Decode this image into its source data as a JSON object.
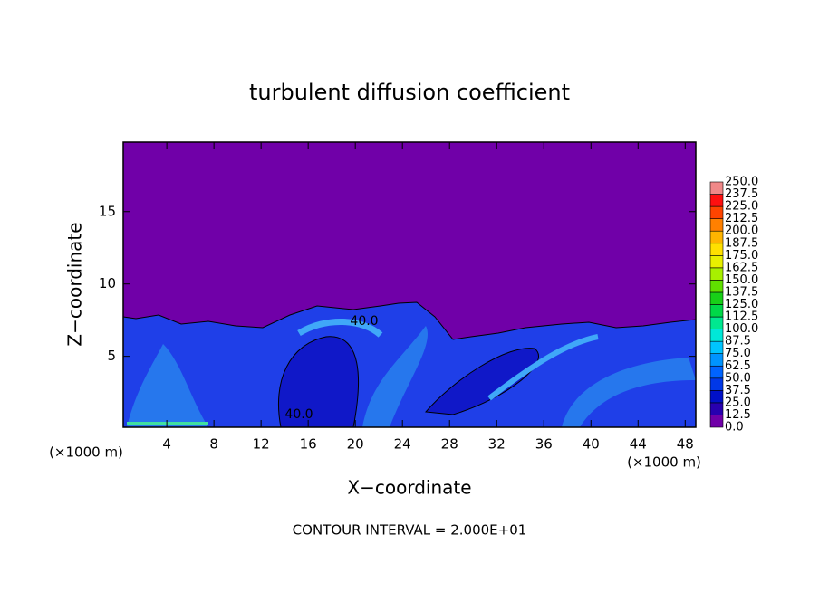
{
  "chart_data": {
    "type": "contour",
    "title": "turbulent diffusion coefficient",
    "x_label": "X−coordinate",
    "y_label": "Z−coordinate",
    "x_unit": "(×1000 m)",
    "footer": "CONTOUR INTERVAL = 2.000E+01",
    "contour_labels": [
      "40.0",
      "40.0"
    ],
    "xlim": [
      0.3,
      48.9
    ],
    "ylim": [
      0.1,
      19.8
    ],
    "xticks": [
      4,
      8,
      12,
      16,
      20,
      24,
      28,
      32,
      36,
      40,
      44,
      48
    ],
    "yticks": [
      5,
      10,
      15
    ],
    "colorbar": {
      "levels": [
        {
          "value": 0,
          "label": "0.0"
        },
        {
          "value": 12.5,
          "label": "12.5"
        },
        {
          "value": 25,
          "label": "25.0"
        },
        {
          "value": 37.5,
          "label": "37.5"
        },
        {
          "value": 50,
          "label": "50.0"
        },
        {
          "value": 62.5,
          "label": "62.5"
        },
        {
          "value": 75,
          "label": "75.0"
        },
        {
          "value": 87.5,
          "label": "87.5"
        },
        {
          "value": 100,
          "label": "100.0"
        },
        {
          "value": 112.5,
          "label": "112.5"
        },
        {
          "value": 125,
          "label": "125.0"
        },
        {
          "value": 137.5,
          "label": "137.5"
        },
        {
          "value": 150,
          "label": "150.0"
        },
        {
          "value": 162.5,
          "label": "162.5"
        },
        {
          "value": 175,
          "label": "175.0"
        },
        {
          "value": 187.5,
          "label": "187.5"
        },
        {
          "value": 200,
          "label": "200.0"
        },
        {
          "value": 212.5,
          "label": "212.5"
        },
        {
          "value": 225,
          "label": "225.0"
        },
        {
          "value": 237.5,
          "label": "237.5"
        },
        {
          "value": 250,
          "label": "250.0"
        }
      ],
      "colors": [
        "#7000a8",
        "#2800b0",
        "#0010c8",
        "#0038e8",
        "#0064ff",
        "#0094ff",
        "#00c4ff",
        "#00e8d8",
        "#00e890",
        "#00d848",
        "#18d018",
        "#60e000",
        "#a8f000",
        "#e8f000",
        "#ffe000",
        "#ffb400",
        "#ff8000",
        "#ff4400",
        "#ff1010",
        "#f08888"
      ]
    }
  }
}
